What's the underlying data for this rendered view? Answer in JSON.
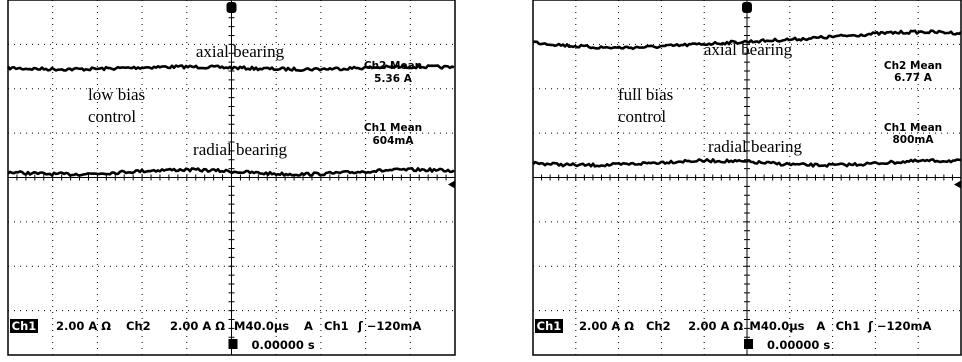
{
  "panels": [
    {
      "annotations": {
        "upper_trace": "axial bearing",
        "bias": "low bias",
        "mode": "control",
        "lower_trace": "radial bearing"
      },
      "readouts": [
        {
          "label": "Ch2 Mean",
          "value": "5.36 A"
        },
        {
          "label": "Ch1 Mean",
          "value": "604mA"
        }
      ],
      "status": {
        "ch1_badge": "Ch1",
        "ch1_scale": "2.00 A Ω",
        "ch2": "Ch2",
        "ch2_scale": "2.00 A Ω",
        "timebase": "M40.0µs",
        "trigger_mode": "A",
        "trigger_source": "Ch1",
        "trigger_level": "ʃ −120mA",
        "trigger_position": "0.00000 s"
      }
    },
    {
      "annotations": {
        "upper_trace": "axial bearing",
        "bias": "full bias",
        "mode": "control",
        "lower_trace": "radial bearing"
      },
      "readouts": [
        {
          "label": "Ch2 Mean",
          "value": "6.77 A"
        },
        {
          "label": "Ch1 Mean",
          "value": "800mA"
        }
      ],
      "status": {
        "ch1_badge": "Ch1",
        "ch1_scale": "2.00 A Ω",
        "ch2": "Ch2",
        "ch2_scale": "2.00 A Ω",
        "timebase": "M40.0µs",
        "trigger_mode": "A",
        "trigger_source": "Ch1",
        "trigger_level": "ʃ −120mA",
        "trigger_position": "0.00000 s"
      }
    }
  ]
}
